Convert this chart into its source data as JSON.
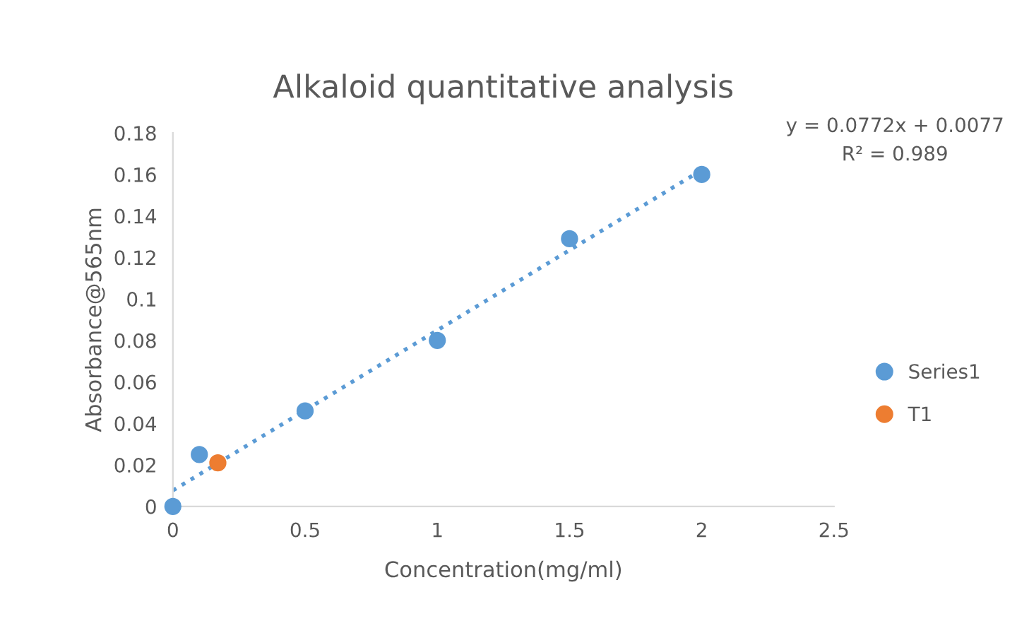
{
  "chart_data": {
    "type": "scatter",
    "title": "Alkaloid quantitative analysis",
    "xlabel": "Concentration(mg/ml)",
    "ylabel": "Absorbance@565nm",
    "xlim": [
      0,
      2.5
    ],
    "xticks": [
      0,
      0.5,
      1,
      1.5,
      2,
      2.5
    ],
    "ylim": [
      0,
      0.18
    ],
    "yticks": [
      0,
      0.02,
      0.04,
      0.06,
      0.08,
      0.1,
      0.12,
      0.14,
      0.16,
      0.18
    ],
    "grid": false,
    "legend": "right",
    "marker": "circle",
    "series": [
      {
        "name": "Series1",
        "color": "#5b9bd5",
        "x": [
          0,
          0.1,
          0.5,
          1,
          1.5,
          2
        ],
        "values": [
          0,
          0.025,
          0.046,
          0.08,
          0.129,
          0.16
        ]
      },
      {
        "name": "T1",
        "color": "#ed7d31",
        "x": [
          0.17
        ],
        "values": [
          0.021
        ]
      },
      {
        "type": "line",
        "color": "#5b9bd5",
        "line_style": "dotted",
        "marker": "none",
        "x": [
          0,
          2
        ],
        "values": [
          0.0077,
          0.1621
        ]
      }
    ],
    "annotations": [
      "y = 0.0772x + 0.0077",
      "R² = 0.989"
    ]
  }
}
